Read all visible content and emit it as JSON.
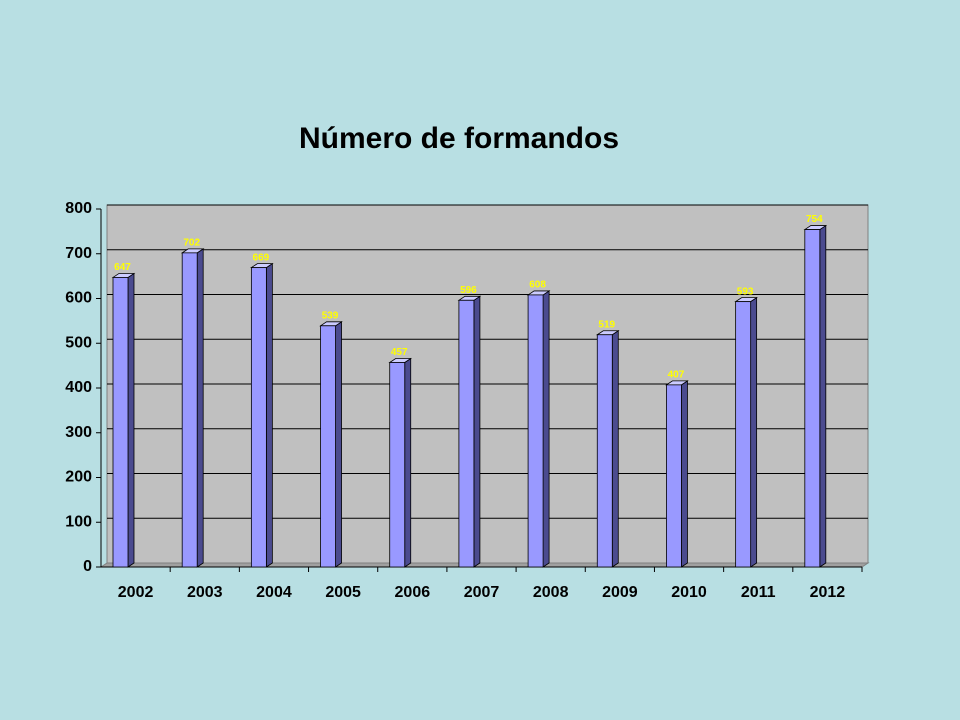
{
  "chart_data": {
    "type": "bar",
    "title": "Número de formandos",
    "categories": [
      "2002",
      "2003",
      "2004",
      "2005",
      "2006",
      "2007",
      "2008",
      "2009",
      "2010",
      "2011",
      "2012"
    ],
    "values": [
      647,
      702,
      669,
      539,
      457,
      596,
      608,
      519,
      407,
      593,
      754
    ],
    "color": "#9999ff",
    "ylim": [
      0,
      800
    ],
    "yticks": [
      0,
      100,
      200,
      300,
      400,
      500,
      600,
      700,
      800
    ],
    "grid": true
  }
}
